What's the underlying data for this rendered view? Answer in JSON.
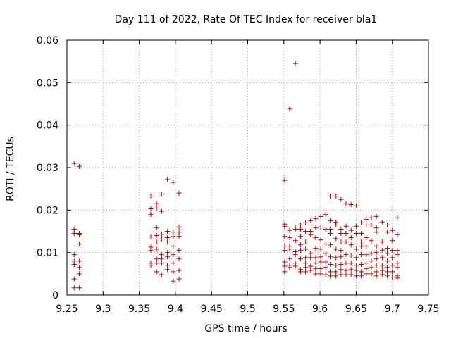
{
  "chart_data": {
    "type": "scatter",
    "title": "Day 111 of 2022, Rate Of TEC Index for receiver bla1",
    "xlabel": "GPS time / hours",
    "ylabel": "ROTI / TECUs",
    "xlim": [
      9.25,
      9.75
    ],
    "ylim": [
      0,
      0.06
    ],
    "xticks": [
      9.25,
      9.3,
      9.35,
      9.4,
      9.45,
      9.5,
      9.55,
      9.6,
      9.65,
      9.7,
      9.75
    ],
    "xtick_labels": [
      "9.25",
      "9.3",
      "9.35",
      "9.4",
      "9.45",
      "9.5",
      "9.55",
      "9.6",
      "9.65",
      "9.7",
      "9.75"
    ],
    "yticks": [
      0,
      0.01,
      0.02,
      0.03,
      0.04,
      0.05,
      0.06
    ],
    "ytick_labels": [
      "0",
      "0.01",
      "0.02",
      "0.03",
      "0.04",
      "0.05",
      "0.06"
    ],
    "grid": true,
    "marker": "+",
    "marker_color": "#cc0000",
    "points": [
      [
        9.26,
        0.031
      ],
      [
        9.26,
        0.0155
      ],
      [
        9.26,
        0.0145
      ],
      [
        9.26,
        0.0095
      ],
      [
        9.26,
        0.008
      ],
      [
        9.26,
        0.0072
      ],
      [
        9.26,
        0.0038
      ],
      [
        9.26,
        0.0017
      ],
      [
        9.267,
        0.0303
      ],
      [
        9.267,
        0.0145
      ],
      [
        9.267,
        0.0142
      ],
      [
        9.267,
        0.012
      ],
      [
        9.267,
        0.008
      ],
      [
        9.267,
        0.0065
      ],
      [
        9.267,
        0.005
      ],
      [
        9.267,
        0.0017
      ],
      [
        9.366,
        0.0233
      ],
      [
        9.366,
        0.0203
      ],
      [
        9.366,
        0.019
      ],
      [
        9.366,
        0.0137
      ],
      [
        9.366,
        0.0113
      ],
      [
        9.366,
        0.0105
      ],
      [
        9.366,
        0.0075
      ],
      [
        9.366,
        0.007
      ],
      [
        9.374,
        0.0215
      ],
      [
        9.374,
        0.0205
      ],
      [
        9.374,
        0.0158
      ],
      [
        9.374,
        0.014
      ],
      [
        9.374,
        0.0125
      ],
      [
        9.374,
        0.0108
      ],
      [
        9.374,
        0.0085
      ],
      [
        9.374,
        0.0075
      ],
      [
        9.374,
        0.0055
      ],
      [
        9.381,
        0.0238
      ],
      [
        9.381,
        0.0197
      ],
      [
        9.381,
        0.0143
      ],
      [
        9.381,
        0.0132
      ],
      [
        9.381,
        0.0095
      ],
      [
        9.381,
        0.0085
      ],
      [
        9.381,
        0.0075
      ],
      [
        9.381,
        0.0048
      ],
      [
        9.389,
        0.0272
      ],
      [
        9.389,
        0.015
      ],
      [
        9.389,
        0.0135
      ],
      [
        9.389,
        0.0125
      ],
      [
        9.389,
        0.01
      ],
      [
        9.389,
        0.009
      ],
      [
        9.389,
        0.007
      ],
      [
        9.389,
        0.006
      ],
      [
        9.397,
        0.0265
      ],
      [
        9.397,
        0.0148
      ],
      [
        9.397,
        0.0138
      ],
      [
        9.397,
        0.0115
      ],
      [
        9.397,
        0.0095
      ],
      [
        9.397,
        0.0075
      ],
      [
        9.397,
        0.0055
      ],
      [
        9.397,
        0.0033
      ],
      [
        9.405,
        0.024
      ],
      [
        9.405,
        0.016
      ],
      [
        9.405,
        0.0148
      ],
      [
        9.405,
        0.0138
      ],
      [
        9.405,
        0.0105
      ],
      [
        9.405,
        0.0085
      ],
      [
        9.405,
        0.0058
      ],
      [
        9.405,
        0.0038
      ],
      [
        9.551,
        0.027
      ],
      [
        9.551,
        0.0167
      ],
      [
        9.551,
        0.0162
      ],
      [
        9.551,
        0.0138
      ],
      [
        9.551,
        0.0115
      ],
      [
        9.551,
        0.0105
      ],
      [
        9.551,
        0.0078
      ],
      [
        9.551,
        0.0068
      ],
      [
        9.551,
        0.0055
      ],
      [
        9.558,
        0.0438
      ],
      [
        9.558,
        0.0152
      ],
      [
        9.558,
        0.0135
      ],
      [
        9.558,
        0.0115
      ],
      [
        9.558,
        0.0108
      ],
      [
        9.558,
        0.0085
      ],
      [
        9.558,
        0.007
      ],
      [
        9.558,
        0.0065
      ],
      [
        9.566,
        0.0545
      ],
      [
        9.566,
        0.016
      ],
      [
        9.566,
        0.0155
      ],
      [
        9.566,
        0.0128
      ],
      [
        9.566,
        0.0102
      ],
      [
        9.566,
        0.0095
      ],
      [
        9.566,
        0.0075
      ],
      [
        9.566,
        0.0068
      ],
      [
        9.573,
        0.0165
      ],
      [
        9.573,
        0.0155
      ],
      [
        9.573,
        0.0138
      ],
      [
        9.573,
        0.0118
      ],
      [
        9.573,
        0.0105
      ],
      [
        9.573,
        0.0085
      ],
      [
        9.573,
        0.006
      ],
      [
        9.573,
        0.0055
      ],
      [
        9.58,
        0.017
      ],
      [
        9.58,
        0.015
      ],
      [
        9.58,
        0.0125
      ],
      [
        9.58,
        0.0108
      ],
      [
        9.58,
        0.0088
      ],
      [
        9.58,
        0.0075
      ],
      [
        9.58,
        0.0065
      ],
      [
        9.58,
        0.0055
      ],
      [
        9.587,
        0.0175
      ],
      [
        9.587,
        0.015
      ],
      [
        9.587,
        0.0142
      ],
      [
        9.587,
        0.0098
      ],
      [
        9.587,
        0.0088
      ],
      [
        9.587,
        0.0068
      ],
      [
        9.587,
        0.0058
      ],
      [
        9.594,
        0.018
      ],
      [
        9.594,
        0.0158
      ],
      [
        9.594,
        0.0135
      ],
      [
        9.594,
        0.011
      ],
      [
        9.594,
        0.0088
      ],
      [
        9.594,
        0.0075
      ],
      [
        9.594,
        0.0062
      ],
      [
        9.594,
        0.005
      ],
      [
        9.601,
        0.0185
      ],
      [
        9.601,
        0.016
      ],
      [
        9.601,
        0.013
      ],
      [
        9.601,
        0.0108
      ],
      [
        9.601,
        0.009
      ],
      [
        9.601,
        0.0078
      ],
      [
        9.601,
        0.0062
      ],
      [
        9.601,
        0.005
      ],
      [
        9.608,
        0.019
      ],
      [
        9.608,
        0.0155
      ],
      [
        9.608,
        0.012
      ],
      [
        9.608,
        0.0098
      ],
      [
        9.608,
        0.0078
      ],
      [
        9.608,
        0.0065
      ],
      [
        9.608,
        0.0048
      ],
      [
        9.615,
        0.0233
      ],
      [
        9.615,
        0.0175
      ],
      [
        9.615,
        0.0155
      ],
      [
        9.615,
        0.0145
      ],
      [
        9.615,
        0.0118
      ],
      [
        9.615,
        0.009
      ],
      [
        9.615,
        0.0072
      ],
      [
        9.615,
        0.0055
      ],
      [
        9.615,
        0.0045
      ],
      [
        9.622,
        0.0233
      ],
      [
        9.622,
        0.0172
      ],
      [
        9.622,
        0.0165
      ],
      [
        9.622,
        0.0133
      ],
      [
        9.622,
        0.0108
      ],
      [
        9.622,
        0.0088
      ],
      [
        9.622,
        0.007
      ],
      [
        9.622,
        0.0055
      ],
      [
        9.622,
        0.0045
      ],
      [
        9.629,
        0.0225
      ],
      [
        9.629,
        0.0155
      ],
      [
        9.629,
        0.0145
      ],
      [
        9.629,
        0.0125
      ],
      [
        9.629,
        0.0105
      ],
      [
        9.629,
        0.009
      ],
      [
        9.629,
        0.0072
      ],
      [
        9.629,
        0.006
      ],
      [
        9.629,
        0.0048
      ],
      [
        9.636,
        0.0215
      ],
      [
        9.636,
        0.0162
      ],
      [
        9.636,
        0.0145
      ],
      [
        9.636,
        0.0125
      ],
      [
        9.636,
        0.0095
      ],
      [
        9.636,
        0.0075
      ],
      [
        9.636,
        0.0058
      ],
      [
        9.636,
        0.0048
      ],
      [
        9.643,
        0.0213
      ],
      [
        9.643,
        0.0152
      ],
      [
        9.643,
        0.0135
      ],
      [
        9.643,
        0.0118
      ],
      [
        9.643,
        0.0092
      ],
      [
        9.643,
        0.0075
      ],
      [
        9.643,
        0.006
      ],
      [
        9.643,
        0.0048
      ],
      [
        9.65,
        0.021
      ],
      [
        9.65,
        0.0162
      ],
      [
        9.65,
        0.0145
      ],
      [
        9.65,
        0.0108
      ],
      [
        9.65,
        0.0088
      ],
      [
        9.65,
        0.007
      ],
      [
        9.65,
        0.0058
      ],
      [
        9.65,
        0.0045
      ],
      [
        9.657,
        0.017
      ],
      [
        9.657,
        0.0145
      ],
      [
        9.657,
        0.0125
      ],
      [
        9.657,
        0.0115
      ],
      [
        9.657,
        0.0095
      ],
      [
        9.657,
        0.0072
      ],
      [
        9.657,
        0.0055
      ],
      [
        9.657,
        0.0045
      ],
      [
        9.664,
        0.0178
      ],
      [
        9.664,
        0.0165
      ],
      [
        9.664,
        0.0135
      ],
      [
        9.664,
        0.0115
      ],
      [
        9.664,
        0.0095
      ],
      [
        9.664,
        0.0075
      ],
      [
        9.664,
        0.0062
      ],
      [
        9.664,
        0.005
      ],
      [
        9.671,
        0.0182
      ],
      [
        9.671,
        0.0165
      ],
      [
        9.671,
        0.0128
      ],
      [
        9.671,
        0.0098
      ],
      [
        9.671,
        0.008
      ],
      [
        9.671,
        0.0065
      ],
      [
        9.671,
        0.005
      ],
      [
        9.678,
        0.0185
      ],
      [
        9.678,
        0.0158
      ],
      [
        9.678,
        0.0148
      ],
      [
        9.678,
        0.0115
      ],
      [
        9.678,
        0.01
      ],
      [
        9.678,
        0.0085
      ],
      [
        9.678,
        0.007
      ],
      [
        9.678,
        0.0055
      ],
      [
        9.678,
        0.0045
      ],
      [
        9.686,
        0.0172
      ],
      [
        9.686,
        0.0125
      ],
      [
        9.686,
        0.0105
      ],
      [
        9.686,
        0.0088
      ],
      [
        9.686,
        0.007
      ],
      [
        9.686,
        0.0058
      ],
      [
        9.686,
        0.0048
      ],
      [
        9.693,
        0.0165
      ],
      [
        9.693,
        0.0148
      ],
      [
        9.693,
        0.011
      ],
      [
        9.693,
        0.0098
      ],
      [
        9.693,
        0.008
      ],
      [
        9.693,
        0.0065
      ],
      [
        9.693,
        0.0055
      ],
      [
        9.693,
        0.0045
      ],
      [
        9.7,
        0.0152
      ],
      [
        9.7,
        0.0128
      ],
      [
        9.7,
        0.0105
      ],
      [
        9.7,
        0.0088
      ],
      [
        9.7,
        0.007
      ],
      [
        9.7,
        0.0055
      ],
      [
        9.7,
        0.0042
      ],
      [
        9.707,
        0.0182
      ],
      [
        9.707,
        0.0142
      ],
      [
        9.707,
        0.0105
      ],
      [
        9.707,
        0.0095
      ],
      [
        9.707,
        0.0075
      ],
      [
        9.707,
        0.0065
      ],
      [
        9.707,
        0.0045
      ],
      [
        9.707,
        0.004
      ]
    ]
  }
}
